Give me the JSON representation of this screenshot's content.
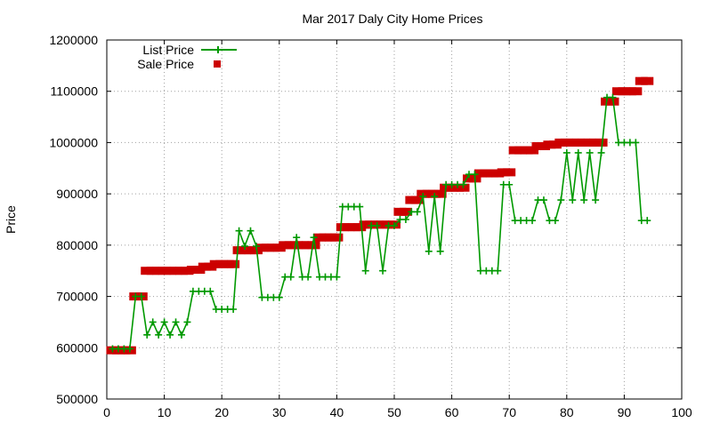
{
  "chart_data": {
    "type": "line",
    "title": "Mar 2017 Daly City Home Prices",
    "xlabel": "",
    "ylabel": "Price",
    "xlim": [
      0,
      100
    ],
    "ylim": [
      500000,
      1200000
    ],
    "x_ticks": [
      0,
      10,
      20,
      30,
      40,
      50,
      60,
      70,
      80,
      90,
      100
    ],
    "y_ticks": [
      500000,
      600000,
      700000,
      800000,
      900000,
      1000000,
      1100000,
      1200000
    ],
    "grid": true,
    "legend_position": "top-left",
    "series": [
      {
        "name": "List Price",
        "style": "line-with-plus-markers",
        "color": "#009900",
        "x": [
          1,
          2,
          3,
          4,
          5,
          6,
          7,
          8,
          9,
          10,
          11,
          12,
          13,
          14,
          15,
          16,
          17,
          18,
          19,
          20,
          21,
          22,
          23,
          24,
          25,
          26,
          27,
          28,
          29,
          30,
          31,
          32,
          33,
          34,
          35,
          36,
          37,
          38,
          39,
          40,
          41,
          42,
          43,
          44,
          45,
          46,
          47,
          48,
          49,
          50,
          51,
          52,
          53,
          54,
          55,
          56,
          57,
          58,
          59,
          60,
          61,
          62,
          63,
          64,
          65,
          66,
          67,
          68,
          69,
          70,
          71,
          72,
          73,
          74,
          75,
          76,
          77,
          78,
          79,
          80,
          81,
          82,
          83,
          84,
          85,
          86,
          87,
          88,
          89,
          90,
          91,
          92,
          93,
          94
        ],
        "values": [
          598000,
          598000,
          598000,
          598000,
          700000,
          700000,
          625000,
          650000,
          625000,
          650000,
          625000,
          650000,
          625000,
          650000,
          710000,
          710000,
          710000,
          710000,
          675000,
          675000,
          675000,
          675000,
          828000,
          798000,
          828000,
          798000,
          698000,
          698000,
          698000,
          698000,
          738000,
          738000,
          815000,
          738000,
          738000,
          815000,
          738000,
          738000,
          738000,
          738000,
          875000,
          875000,
          875000,
          875000,
          750000,
          838000,
          838000,
          750000,
          838000,
          838000,
          850000,
          850000,
          865000,
          865000,
          895000,
          788000,
          895000,
          788000,
          918000,
          918000,
          918000,
          918000,
          938000,
          938000,
          750000,
          750000,
          750000,
          750000,
          918000,
          918000,
          848000,
          848000,
          848000,
          848000,
          888000,
          888000,
          848000,
          848000,
          888000,
          980000,
          888000,
          980000,
          888000,
          980000,
          888000,
          980000,
          1088000,
          1088000,
          1000000,
          1000000,
          1000000,
          1000000,
          848000,
          848000
        ]
      },
      {
        "name": "Sale Price",
        "style": "filled-square-markers",
        "color": "#cc0000",
        "x": [
          1,
          2,
          3,
          4,
          5,
          6,
          7,
          8,
          9,
          10,
          11,
          12,
          13,
          14,
          15,
          16,
          17,
          18,
          19,
          20,
          21,
          22,
          23,
          24,
          25,
          26,
          27,
          28,
          29,
          30,
          31,
          32,
          33,
          34,
          35,
          36,
          37,
          38,
          39,
          40,
          41,
          42,
          43,
          44,
          45,
          46,
          47,
          48,
          49,
          50,
          51,
          52,
          53,
          54,
          55,
          56,
          57,
          58,
          59,
          60,
          61,
          62,
          63,
          64,
          65,
          66,
          67,
          68,
          69,
          70,
          71,
          72,
          73,
          74,
          75,
          76,
          77,
          78,
          79,
          80,
          81,
          82,
          83,
          84,
          85,
          86,
          87,
          88,
          89,
          90,
          91,
          92,
          93,
          94
        ],
        "values": [
          595000,
          595000,
          595000,
          595000,
          700000,
          700000,
          750000,
          750000,
          750000,
          750000,
          750000,
          750000,
          750000,
          750000,
          752000,
          752000,
          758000,
          758000,
          763000,
          763000,
          763000,
          763000,
          790000,
          790000,
          790000,
          790000,
          795000,
          795000,
          795000,
          795000,
          800000,
          800000,
          800000,
          800000,
          800000,
          800000,
          815000,
          815000,
          815000,
          815000,
          835000,
          835000,
          835000,
          835000,
          840000,
          840000,
          840000,
          840000,
          840000,
          840000,
          865000,
          865000,
          888000,
          888000,
          900000,
          900000,
          900000,
          900000,
          912000,
          912000,
          912000,
          912000,
          930000,
          930000,
          940000,
          940000,
          940000,
          940000,
          942000,
          942000,
          985000,
          985000,
          985000,
          985000,
          993000,
          993000,
          996000,
          996000,
          1000000,
          1000000,
          1000000,
          1000000,
          1000000,
          1000000,
          1000000,
          1000000,
          1080000,
          1080000,
          1100000,
          1100000,
          1100000,
          1100000,
          1120000,
          1120000
        ]
      }
    ]
  }
}
